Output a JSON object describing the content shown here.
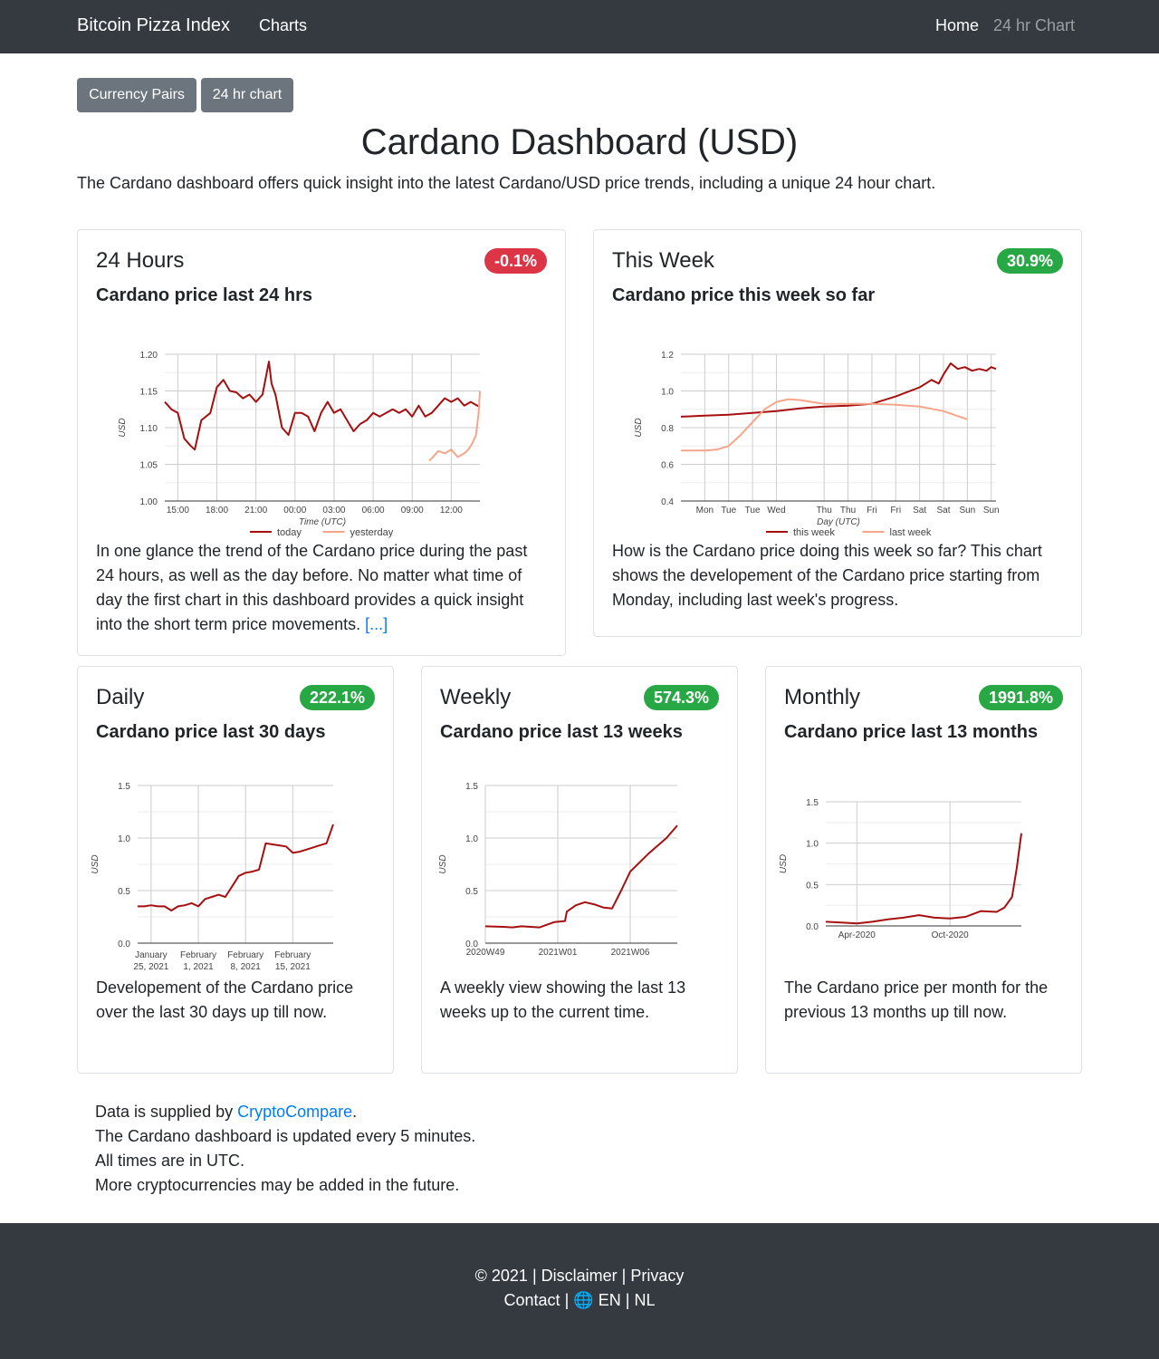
{
  "navbar": {
    "brand": "Bitcoin Pizza Index",
    "charts": "Charts",
    "home": "Home",
    "chart24": "24 hr Chart"
  },
  "buttons": {
    "currency_pairs": "Currency Pairs",
    "chart24": "24 hr chart"
  },
  "page": {
    "title": "Cardano Dashboard (USD)",
    "intro": "The Cardano dashboard offers quick insight into the latest Cardano/USD price trends, including a unique 24 hour chart."
  },
  "cards": {
    "h24": {
      "title": "24 Hours",
      "badge": "-0.1%",
      "subtitle": "Cardano price last 24 hrs",
      "text": "In one glance the trend of the Cardano price during the past 24 hours, as well as the day before. No matter what time of day the first chart in this dashboard provides a quick insight into the short term price movements.",
      "more": "[...]"
    },
    "week": {
      "title": "This Week",
      "badge": "30.9%",
      "subtitle": "Cardano price this week so far",
      "text": "How is the Cardano price doing this week so far? This chart shows the developement of the Cardano price starting from Monday, including last week's progress."
    },
    "daily": {
      "title": "Daily",
      "badge": "222.1%",
      "subtitle": "Cardano price last 30 days",
      "text": "Developement of the Cardano price over the last 30 days up till now."
    },
    "weekly": {
      "title": "Weekly",
      "badge": "574.3%",
      "subtitle": "Cardano price last 13 weeks",
      "text": "A weekly view showing the last 13 weeks up to the current time."
    },
    "monthly": {
      "title": "Monthly",
      "badge": "1991.8%",
      "subtitle": "Cardano price last 13 months",
      "text": "The Cardano price per month for the previous 13 months up till now."
    }
  },
  "footer_notes": {
    "supplied_prefix": "Data is supplied by ",
    "supplied_link": "CryptoCompare",
    "supplied_suffix": ".",
    "updated": "The Cardano dashboard is updated every 5 minutes.",
    "times": "All times are in UTC.",
    "more": "More cryptocurrencies may be added in the future."
  },
  "footer": {
    "copyright": "© 2021",
    "disclaimer": "Disclaimer",
    "privacy": "Privacy",
    "contact": "Contact",
    "globe": "🌐",
    "en": "EN",
    "nl": "NL",
    "sep": "|"
  },
  "colors": {
    "today": "#a50f0f",
    "yesterday": "#f7a58a",
    "badge_red": "#dc3545",
    "badge_green": "#28a745"
  },
  "chart_data": [
    {
      "id": "h24",
      "type": "line",
      "title": "",
      "xlabel": "Time (UTC)",
      "ylabel": "USD",
      "ylim": [
        1.0,
        1.2
      ],
      "yticks": [
        "1.00",
        "1.05",
        "1.10",
        "1.15",
        "1.20"
      ],
      "xticks": [
        "15:00",
        "18:00",
        "21:00",
        "00:00",
        "03:00",
        "06:00",
        "09:00",
        "12:00"
      ],
      "x_hours": [
        0,
        3,
        6,
        9,
        12,
        15,
        18,
        21
      ],
      "xlim": [
        -1,
        23.2
      ],
      "legend": "bottom",
      "series": [
        {
          "name": "today",
          "color": "#a50f0f",
          "x": [
            -1,
            -0.5,
            0,
            0.5,
            1,
            1.3,
            1.8,
            2.5,
            3,
            3.5,
            4,
            4.5,
            5,
            5.5,
            6,
            6.5,
            7,
            7.2,
            7.5,
            8,
            8.5,
            9,
            9.5,
            10,
            10.5,
            11,
            11.5,
            12,
            12.5,
            13,
            13.5,
            14,
            14.5,
            15,
            15.5,
            16,
            16.5,
            17,
            17.5,
            18,
            18.5,
            19,
            19.5,
            20,
            20.5,
            21,
            21.5,
            22,
            22.5,
            23,
            23.2
          ],
          "y": [
            1.135,
            1.125,
            1.12,
            1.085,
            1.075,
            1.07,
            1.11,
            1.12,
            1.155,
            1.165,
            1.15,
            1.148,
            1.14,
            1.145,
            1.135,
            1.145,
            1.19,
            1.16,
            1.145,
            1.1,
            1.09,
            1.12,
            1.12,
            1.115,
            1.095,
            1.12,
            1.135,
            1.12,
            1.125,
            1.11,
            1.095,
            1.105,
            1.11,
            1.12,
            1.115,
            1.12,
            1.125,
            1.12,
            1.125,
            1.115,
            1.13,
            1.115,
            1.12,
            1.13,
            1.14,
            1.135,
            1.14,
            1.13,
            1.135,
            1.13,
            1.128
          ]
        },
        {
          "name": "yesterday",
          "color": "#f7a58a",
          "x": [
            19.3,
            19.6,
            20,
            20.5,
            21,
            21.5,
            22,
            22.3,
            22.6,
            22.9,
            23.1,
            23.2
          ],
          "y": [
            1.055,
            1.06,
            1.068,
            1.065,
            1.07,
            1.06,
            1.065,
            1.07,
            1.078,
            1.09,
            1.12,
            1.15
          ]
        }
      ]
    },
    {
      "id": "week",
      "type": "line",
      "title": "",
      "xlabel": "Day (UTC)",
      "ylabel": "USD",
      "ylim": [
        0.4,
        1.2
      ],
      "yticks": [
        "0.4",
        "0.6",
        "0.8",
        "1.0",
        "1.2"
      ],
      "xticks": [
        "Mon",
        "Tue",
        "Tue",
        "Wed",
        "Thu",
        "Thu",
        "Fri",
        "Fri",
        "Sat",
        "Sat",
        "Sun",
        "Sun"
      ],
      "x_days": [
        1,
        2,
        3,
        4,
        6,
        7,
        8,
        9,
        10,
        11,
        12,
        13
      ],
      "xlim": [
        0,
        13.2
      ],
      "legend": "bottom",
      "series": [
        {
          "name": "this week",
          "color": "#a50f0f",
          "x": [
            0,
            1,
            2,
            3,
            4,
            5,
            6,
            7,
            8,
            9,
            10,
            10.5,
            10.8,
            11.0,
            11.3,
            11.6,
            11.9,
            12.2,
            12.5,
            12.8,
            13.0,
            13.2
          ],
          "y": [
            0.86,
            0.865,
            0.87,
            0.88,
            0.89,
            0.905,
            0.915,
            0.92,
            0.93,
            0.97,
            1.02,
            1.06,
            1.04,
            1.09,
            1.15,
            1.12,
            1.13,
            1.11,
            1.12,
            1.11,
            1.13,
            1.12
          ]
        },
        {
          "name": "last week",
          "color": "#f7a58a",
          "x": [
            0,
            1,
            1.5,
            2,
            2.5,
            3,
            3.5,
            4,
            4.5,
            5,
            5.5,
            6,
            7,
            8,
            9,
            10,
            11,
            12
          ],
          "y": [
            0.675,
            0.675,
            0.68,
            0.7,
            0.76,
            0.83,
            0.9,
            0.94,
            0.955,
            0.95,
            0.94,
            0.93,
            0.93,
            0.93,
            0.925,
            0.915,
            0.89,
            0.845
          ]
        }
      ]
    },
    {
      "id": "daily",
      "type": "line",
      "title": "",
      "xlabel": "",
      "ylabel": "USD",
      "ylim": [
        0,
        1.5
      ],
      "yticks": [
        "0.0",
        "0.5",
        "1.0",
        "1.5"
      ],
      "xticks": [
        [
          "January",
          "25, 2021"
        ],
        [
          "February",
          "1, 2021"
        ],
        [
          "February",
          "8, 2021"
        ],
        [
          "February",
          "15, 2021"
        ]
      ],
      "x_days": [
        0,
        7,
        14,
        21
      ],
      "xlim": [
        -2,
        27
      ],
      "legend": "none",
      "series": [
        {
          "name": "",
          "color": "#a50f0f",
          "x": [
            -2,
            -1,
            0,
            1,
            2,
            3,
            4,
            5,
            6,
            7,
            8,
            9,
            10,
            11,
            12,
            13,
            14,
            15,
            16,
            17,
            18,
            19,
            20,
            21,
            22,
            23,
            24,
            25,
            26,
            27
          ],
          "y": [
            0.35,
            0.35,
            0.36,
            0.35,
            0.35,
            0.31,
            0.35,
            0.36,
            0.38,
            0.35,
            0.42,
            0.44,
            0.46,
            0.44,
            0.54,
            0.64,
            0.67,
            0.68,
            0.7,
            0.95,
            0.94,
            0.93,
            0.92,
            0.86,
            0.87,
            0.89,
            0.91,
            0.93,
            0.95,
            1.13
          ]
        }
      ]
    },
    {
      "id": "weekly",
      "type": "line",
      "title": "",
      "xlabel": "",
      "ylabel": "USD",
      "ylim": [
        0,
        1.5
      ],
      "yticks": [
        "0.0",
        "0.5",
        "1.0",
        "1.5"
      ],
      "xticks": [
        "2020W49",
        "2021W01",
        "2021W06"
      ],
      "x_weeks": [
        0,
        4,
        8
      ],
      "xlim": [
        0,
        10.6
      ],
      "legend": "none",
      "series": [
        {
          "name": "",
          "color": "#a50f0f",
          "x": [
            0,
            1,
            1.5,
            2,
            3,
            3.8,
            4.4,
            4.5,
            5.0,
            5.5,
            6.0,
            6.5,
            7.0,
            7.5,
            8.0,
            9.0,
            10.0,
            10.6
          ],
          "y": [
            0.16,
            0.155,
            0.15,
            0.16,
            0.15,
            0.2,
            0.21,
            0.3,
            0.36,
            0.39,
            0.37,
            0.34,
            0.33,
            0.5,
            0.68,
            0.85,
            1.0,
            1.12
          ]
        }
      ]
    },
    {
      "id": "monthly",
      "type": "line",
      "title": "",
      "xlabel": "",
      "ylabel": "USD",
      "ylim": [
        0,
        1.5
      ],
      "yticks": [
        "0.0",
        "0.5",
        "1.0",
        "1.5"
      ],
      "xticks": [
        "Apr-2020",
        "Oct-2020"
      ],
      "x_months": [
        2,
        8
      ],
      "xlim": [
        0,
        12.6
      ],
      "legend": "none",
      "series": [
        {
          "name": "",
          "color": "#a50f0f",
          "x": [
            0,
            1,
            2,
            3,
            4,
            5,
            6,
            7,
            8,
            9,
            10,
            11,
            11.5,
            12,
            12.3,
            12.6
          ],
          "y": [
            0.05,
            0.04,
            0.03,
            0.05,
            0.08,
            0.1,
            0.13,
            0.1,
            0.09,
            0.11,
            0.18,
            0.17,
            0.22,
            0.35,
            0.7,
            1.12
          ]
        }
      ]
    }
  ]
}
